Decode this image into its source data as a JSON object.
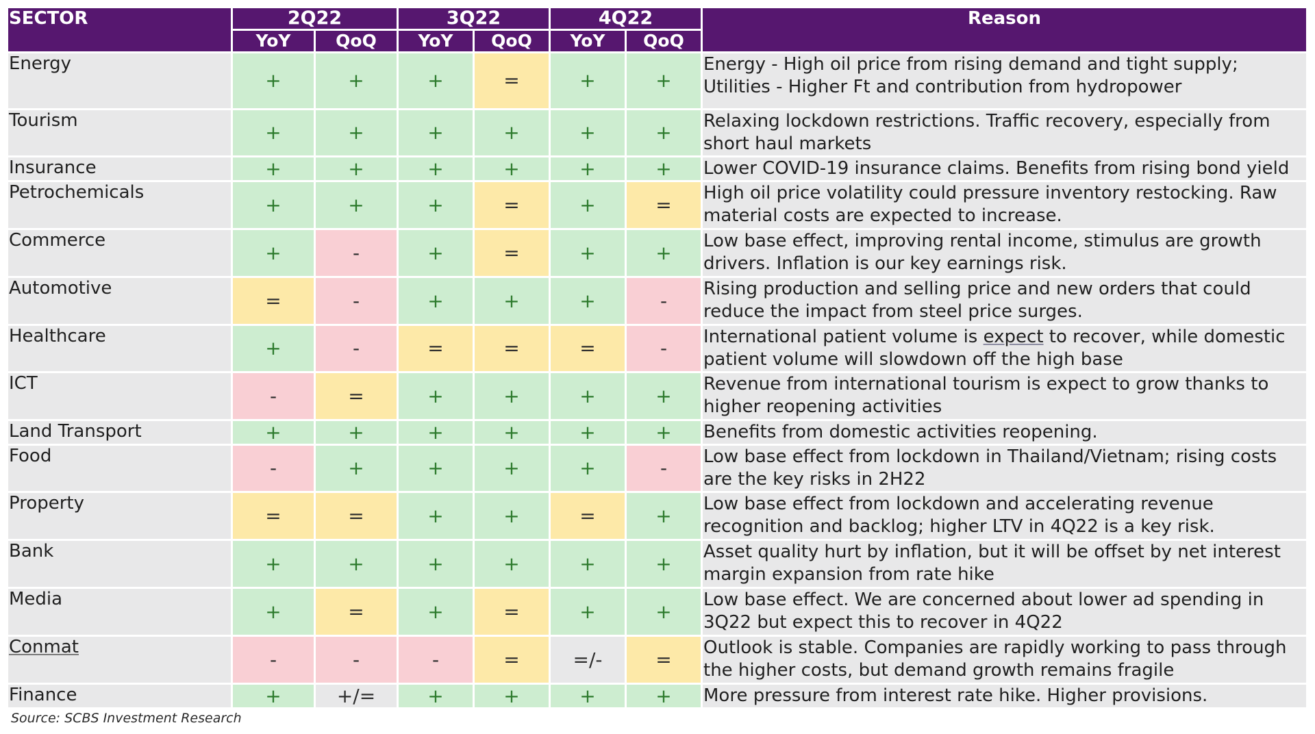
{
  "colors": {
    "header_bg": "#56176f",
    "header_text": "#ffffff",
    "positive": "#cdedd0",
    "neutral": "#fde9a8",
    "negative": "#f9cfd4",
    "mixed": "#e8e8e9",
    "label_bg": "#e8e8e9"
  },
  "header": {
    "sector": "SECTOR",
    "reason": "Reason",
    "quarters": [
      "2Q22",
      "3Q22",
      "4Q22"
    ],
    "subheaders": [
      "YoY",
      "QoQ",
      "YoY",
      "QoQ",
      "YoY",
      "QoQ"
    ]
  },
  "rows": [
    {
      "sector": "Energy",
      "h": 80,
      "values": [
        "+",
        "+",
        "+",
        "=",
        "+",
        "+"
      ],
      "reason": "Energy - High oil price from rising demand and tight supply; Utilities - Higher Ft and contribution from hydropower"
    },
    {
      "sector": "Tourism",
      "h": 66,
      "values": [
        "+",
        "+",
        "+",
        "+",
        "+",
        "+"
      ],
      "reason": "Relaxing lockdown restrictions. Traffic recovery, especially from short haul markets"
    },
    {
      "sector": "Insurance",
      "h": 31,
      "values": [
        "+",
        "+",
        "+",
        "+",
        "+",
        "+"
      ],
      "reason": "Lower COVID-19 insurance claims. Benefits from rising bond yield"
    },
    {
      "sector": "Petrochemicals",
      "h": 67,
      "values": [
        "+",
        "+",
        "+",
        "=",
        "+",
        "="
      ],
      "reason": "High oil price volatility could pressure inventory restocking. Raw material costs are expected to increase."
    },
    {
      "sector": "Commerce",
      "h": 67,
      "values": [
        "+",
        "-",
        "+",
        "=",
        "+",
        "+"
      ],
      "reason": "Low base effect, improving rental income, stimulus are growth drivers. Inflation is our key earnings risk."
    },
    {
      "sector": "Automotive",
      "h": 67,
      "values": [
        "=",
        "-",
        "+",
        "+",
        "+",
        "-"
      ],
      "reason": "Rising production and selling price and new orders that could reduce the impact from steel price surges."
    },
    {
      "sector": "Healthcare",
      "h": 66,
      "values": [
        "+",
        "-",
        "=",
        "=",
        "=",
        "-"
      ],
      "reason_parts": [
        "International patient volume is ",
        "expect",
        " to recover, while domestic patient volume will slowdown off the high base"
      ]
    },
    {
      "sector": "ICT",
      "h": 67,
      "values": [
        "-",
        "=",
        "+",
        "+",
        "+",
        "+"
      ],
      "reason": "Revenue from international tourism is expect to grow thanks to higher reopening activities"
    },
    {
      "sector": "Land Transport",
      "h": 33,
      "values": [
        "+",
        "+",
        "+",
        "+",
        "+",
        "+"
      ],
      "reason": "Benefits from domestic activities reopening."
    },
    {
      "sector": "Food",
      "h": 64,
      "values": [
        "-",
        "+",
        "+",
        "+",
        "+",
        "-"
      ],
      "reason": "Low base effect from lockdown in Thailand/Vietnam; rising costs are the key risks in 2H22"
    },
    {
      "sector": "Property",
      "h": 67,
      "values": [
        "=",
        "=",
        "+",
        "+",
        "=",
        "+"
      ],
      "reason": "Low base effect from lockdown and accelerating revenue recognition and backlog; higher LTV in 4Q22 is a key risk."
    },
    {
      "sector": "Bank",
      "h": 67,
      "values": [
        "+",
        "+",
        "+",
        "+",
        "+",
        "+"
      ],
      "reason": "Asset quality hurt by inflation, but it will be offset by net interest margin expansion from rate hike"
    },
    {
      "sector": "Media",
      "h": 67,
      "values": [
        "+",
        "=",
        "+",
        "=",
        "+",
        "+"
      ],
      "reason": "Low base effect. We are concerned about lower ad spending in 3Q22 but expect this to recover in 4Q22"
    },
    {
      "sector": "Conmat",
      "h": 67,
      "values": [
        "-",
        "-",
        "-",
        "=",
        "=/-",
        "="
      ],
      "reason": "Outlook is stable. Companies are rapidly working to pass through the higher costs, but demand growth remains fragile"
    },
    {
      "sector": "Finance",
      "h": 31,
      "values": [
        "+",
        "+/=",
        "+",
        "+",
        "+",
        "+"
      ],
      "reason": "More pressure from interest rate hike. Higher provisions."
    }
  ],
  "source": "Source: SCBS Investment Research"
}
